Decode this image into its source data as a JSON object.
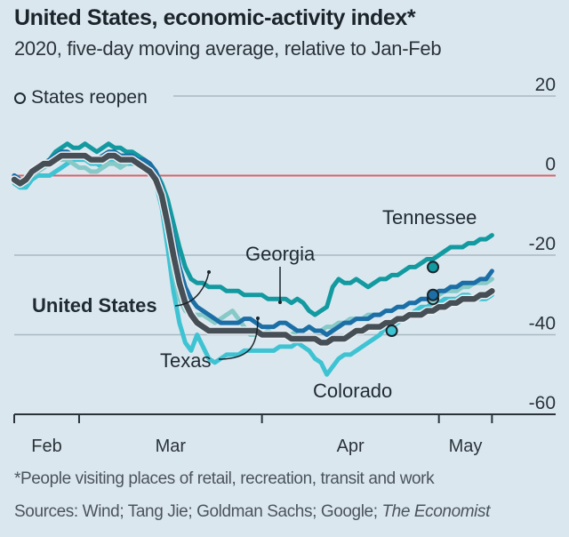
{
  "header": {
    "title": "United States, economic-activity index*",
    "subtitle": "2020, five-day moving average, relative to Jan-Feb"
  },
  "legend": {
    "marker_icon": "open-circle-icon",
    "label": "States reopen"
  },
  "footer": {
    "footnote": "*People visiting places of retail, recreation, transit and work",
    "sources_prefix": "Sources: Wind; Tang Jie; Goldman Sachs; Google; ",
    "sources_italic": "The Economist"
  },
  "colors": {
    "background": "#dbe7ef",
    "zero_line": "#d9636b",
    "gridline": "#a9b8c2",
    "axis": "#2a333a",
    "united_states": "#474f56",
    "tennessee": "#129aa0",
    "georgia": "#86c9c7",
    "texas": "#1c6fa6",
    "colorado": "#3ec3d3"
  },
  "chart_data": {
    "type": "line",
    "title": "United States, economic-activity index*",
    "subtitle": "2020, five-day moving average, relative to Jan-Feb",
    "xlabel": "",
    "ylabel": "",
    "x_unit": "days relative to Mar 1st 2020",
    "xlim": [
      -11,
      71
    ],
    "ylim": [
      -60,
      20
    ],
    "y_ticks": [
      20,
      0,
      -20,
      -40,
      -60
    ],
    "y_tick_labels": [
      "20",
      "0",
      "-20",
      "-40",
      "-60"
    ],
    "y_axis_position": "right",
    "x_ticks": [
      -11,
      0,
      31,
      61,
      70
    ],
    "x_tick_labels": [
      {
        "label": "Feb",
        "at": -5.5
      },
      {
        "label": "Mar",
        "at": 15.5
      },
      {
        "label": "Apr",
        "at": 46
      },
      {
        "label": "May",
        "at": 65.5
      }
    ],
    "grid": true,
    "reference_line": {
      "y": 0,
      "color": "red"
    },
    "legend": {
      "entries": [
        "States reopen"
      ],
      "placement": "top-left"
    },
    "series": [
      {
        "name": "Colorado",
        "key": "colorado",
        "x": [
          -11,
          -10,
          -9,
          -8,
          -7,
          -6,
          -5,
          -4,
          -3,
          -2,
          -1,
          0,
          1,
          2,
          3,
          4,
          5,
          6,
          7,
          8,
          9,
          10,
          11,
          12,
          13,
          14,
          15,
          16,
          17,
          18,
          19,
          20,
          21,
          22,
          23,
          24,
          25,
          26,
          27,
          28,
          29,
          30,
          31,
          32,
          33,
          34,
          35,
          36,
          37,
          38,
          39,
          40,
          41,
          42,
          43,
          44,
          45,
          46,
          47,
          48,
          49,
          50,
          51,
          52,
          53,
          54,
          55,
          56,
          57,
          58,
          59,
          60,
          61,
          62,
          63,
          64,
          65,
          66,
          67,
          68,
          69,
          70
        ],
        "y": [
          -2,
          -3,
          -3,
          -1,
          0,
          0,
          0,
          1,
          2,
          3,
          4,
          4,
          4,
          3,
          3,
          2,
          3,
          4,
          3,
          3,
          3,
          3,
          2,
          1,
          -2,
          -8,
          -18,
          -29,
          -37,
          -42,
          -44,
          -40,
          -43,
          -46,
          -47,
          -46,
          -45,
          -45,
          -45,
          -44,
          -44,
          -44,
          -44,
          -44,
          -44,
          -43,
          -43,
          -43,
          -42,
          -43,
          -44,
          -46,
          -47,
          -50,
          -48,
          -46,
          -45,
          -45,
          -44,
          -43,
          -42,
          -41,
          -40,
          -38,
          -38,
          -37,
          -36,
          -35,
          -34,
          -33,
          -33,
          -32,
          -32,
          -31,
          -31,
          -31,
          -30,
          -30,
          -31,
          -31,
          -31,
          -30
        ],
        "reopen_marker": {
          "x": 53,
          "y": -39
        }
      },
      {
        "name": "Georgia",
        "key": "georgia",
        "x": [
          -11,
          -10,
          -9,
          -8,
          -7,
          -6,
          -5,
          -4,
          -3,
          -2,
          -1,
          0,
          1,
          2,
          3,
          4,
          5,
          6,
          7,
          8,
          9,
          10,
          11,
          12,
          13,
          14,
          15,
          16,
          17,
          18,
          19,
          20,
          21,
          22,
          23,
          24,
          25,
          26,
          27,
          28,
          29,
          30,
          31,
          32,
          33,
          34,
          35,
          36,
          37,
          38,
          39,
          40,
          41,
          42,
          43,
          44,
          45,
          46,
          47,
          48,
          49,
          50,
          51,
          52,
          53,
          54,
          55,
          56,
          57,
          58,
          59,
          60,
          61,
          62,
          63,
          64,
          65,
          66,
          67,
          68,
          69,
          70
        ],
        "y": [
          -1,
          -2,
          -1,
          0,
          1,
          2,
          3,
          4,
          4,
          4,
          3,
          2,
          2,
          1,
          1,
          2,
          3,
          3,
          2,
          3,
          4,
          4,
          3,
          2,
          0,
          -5,
          -14,
          -24,
          -31,
          -34,
          -35,
          -35,
          -35,
          -36,
          -37,
          -36,
          -35,
          -34,
          -36,
          -38,
          -40,
          -40,
          -40,
          -39,
          -40,
          -40,
          -40,
          -40,
          -39,
          -39,
          -38,
          -39,
          -39,
          -38,
          -38,
          -37,
          -37,
          -36,
          -36,
          -36,
          -35,
          -35,
          -35,
          -34,
          -34,
          -33,
          -33,
          -32,
          -32,
          -31,
          -31,
          -30,
          -30,
          -29,
          -29,
          -29,
          -28,
          -28,
          -27,
          -27,
          -27,
          -26
        ],
        "reopen_marker": {
          "x": 60,
          "y": -31
        }
      },
      {
        "name": "Texas",
        "key": "texas",
        "x": [
          -11,
          -10,
          -9,
          -8,
          -7,
          -6,
          -5,
          -4,
          -3,
          -2,
          -1,
          0,
          1,
          2,
          3,
          4,
          5,
          6,
          7,
          8,
          9,
          10,
          11,
          12,
          13,
          14,
          15,
          16,
          17,
          18,
          19,
          20,
          21,
          22,
          23,
          24,
          25,
          26,
          27,
          28,
          29,
          30,
          31,
          32,
          33,
          34,
          35,
          36,
          37,
          38,
          39,
          40,
          41,
          42,
          43,
          44,
          45,
          46,
          47,
          48,
          49,
          50,
          51,
          52,
          53,
          54,
          55,
          56,
          57,
          58,
          59,
          60,
          61,
          62,
          63,
          64,
          65,
          66,
          67,
          68,
          69,
          70
        ],
        "y": [
          0,
          -1,
          -1,
          1,
          2,
          3,
          4,
          5,
          6,
          6,
          5,
          5,
          5,
          4,
          4,
          5,
          6,
          6,
          5,
          5,
          5,
          4,
          4,
          3,
          1,
          -3,
          -9,
          -16,
          -23,
          -28,
          -31,
          -33,
          -34,
          -35,
          -36,
          -37,
          -37,
          -37,
          -37,
          -36,
          -36,
          -37,
          -38,
          -38,
          -38,
          -37,
          -37,
          -38,
          -39,
          -39,
          -38,
          -39,
          -39,
          -40,
          -39,
          -38,
          -37,
          -37,
          -36,
          -36,
          -36,
          -35,
          -35,
          -34,
          -34,
          -33,
          -33,
          -32,
          -32,
          -31,
          -31,
          -30,
          -29,
          -29,
          -28,
          -28,
          -27,
          -27,
          -27,
          -26,
          -26,
          -24
        ],
        "reopen_marker": {
          "x": 60,
          "y": -30
        }
      },
      {
        "name": "Tennessee",
        "key": "tennessee",
        "x": [
          -11,
          -10,
          -9,
          -8,
          -7,
          -6,
          -5,
          -4,
          -3,
          -2,
          -1,
          0,
          1,
          2,
          3,
          4,
          5,
          6,
          7,
          8,
          9,
          10,
          11,
          12,
          13,
          14,
          15,
          16,
          17,
          18,
          19,
          20,
          21,
          22,
          23,
          24,
          25,
          26,
          27,
          28,
          29,
          30,
          31,
          32,
          33,
          34,
          35,
          36,
          37,
          38,
          39,
          40,
          41,
          42,
          43,
          44,
          45,
          46,
          47,
          48,
          49,
          50,
          51,
          52,
          53,
          54,
          55,
          56,
          57,
          58,
          59,
          60,
          61,
          62,
          63,
          64,
          65,
          66,
          67,
          68,
          69,
          70
        ],
        "y": [
          0,
          -1,
          -1,
          1,
          2,
          3,
          4,
          6,
          7,
          8,
          7,
          7,
          8,
          7,
          6,
          7,
          8,
          7,
          7,
          6,
          6,
          5,
          4,
          3,
          1,
          -2,
          -6,
          -12,
          -18,
          -23,
          -26,
          -27,
          -27,
          -28,
          -28,
          -28,
          -29,
          -29,
          -29,
          -30,
          -30,
          -30,
          -30,
          -31,
          -31,
          -31,
          -31,
          -32,
          -31,
          -32,
          -34,
          -35,
          -34,
          -33,
          -28,
          -26,
          -27,
          -27,
          -26,
          -27,
          -28,
          -27,
          -26,
          -26,
          -25,
          -25,
          -24,
          -23,
          -23,
          -22,
          -21,
          -21,
          -20,
          -19,
          -18,
          -18,
          -18,
          -17,
          -17,
          -16,
          -16,
          -15
        ],
        "reopen_marker": {
          "x": 60,
          "y": -23
        }
      },
      {
        "name": "United States",
        "key": "united_states",
        "x": [
          -11,
          -10,
          -9,
          -8,
          -7,
          -6,
          -5,
          -4,
          -3,
          -2,
          -1,
          0,
          1,
          2,
          3,
          4,
          5,
          6,
          7,
          8,
          9,
          10,
          11,
          12,
          13,
          14,
          15,
          16,
          17,
          18,
          19,
          20,
          21,
          22,
          23,
          24,
          25,
          26,
          27,
          28,
          29,
          30,
          31,
          32,
          33,
          34,
          35,
          36,
          37,
          38,
          39,
          40,
          41,
          42,
          43,
          44,
          45,
          46,
          47,
          48,
          49,
          50,
          51,
          52,
          53,
          54,
          55,
          56,
          57,
          58,
          59,
          60,
          61,
          62,
          63,
          64,
          65,
          66,
          67,
          68,
          69,
          70
        ],
        "y": [
          -1,
          -2,
          -1,
          1,
          2,
          3,
          3,
          4,
          5,
          5,
          5,
          5,
          5,
          4,
          4,
          4,
          5,
          5,
          4,
          4,
          4,
          3,
          2,
          1,
          -1,
          -5,
          -12,
          -20,
          -27,
          -32,
          -35,
          -37,
          -38,
          -39,
          -39,
          -39,
          -39,
          -39,
          -39,
          -39,
          -39,
          -39,
          -40,
          -40,
          -40,
          -40,
          -40,
          -41,
          -41,
          -41,
          -41,
          -41,
          -42,
          -42,
          -41,
          -41,
          -41,
          -40,
          -39,
          -39,
          -38,
          -38,
          -38,
          -37,
          -37,
          -36,
          -36,
          -35,
          -35,
          -35,
          -34,
          -34,
          -33,
          -33,
          -32,
          -32,
          -31,
          -31,
          -31,
          -30,
          -30,
          -29
        ]
      }
    ],
    "annotations": [
      {
        "text": "Tennessee",
        "series": "Tennessee"
      },
      {
        "text": "Georgia",
        "series": "Georgia"
      },
      {
        "text": "United States",
        "series": "United States",
        "bold": true
      },
      {
        "text": "Texas",
        "series": "Texas"
      },
      {
        "text": "Colorado",
        "series": "Colorado"
      }
    ]
  }
}
